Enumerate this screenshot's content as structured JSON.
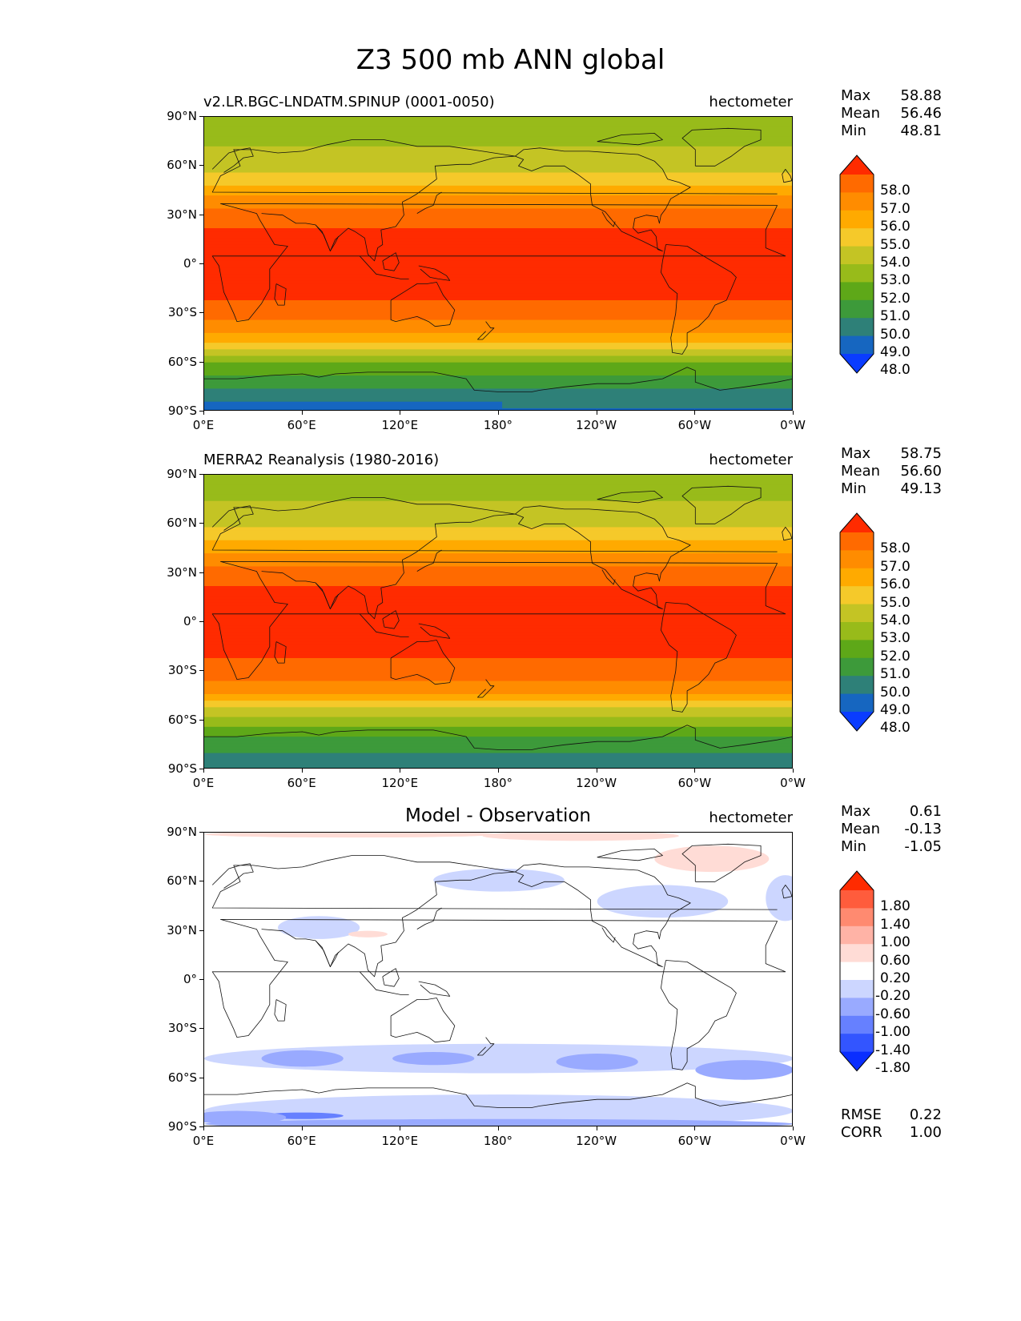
{
  "figure": {
    "title": "Z3 500 mb ANN global"
  },
  "axes": {
    "y_ticks": [
      "90°N",
      "60°N",
      "30°N",
      "0°",
      "30°S",
      "60°S",
      "90°S"
    ],
    "x_ticks": [
      "0°E",
      "60°E",
      "120°E",
      "180°",
      "120°W",
      "60°W",
      "0°W"
    ]
  },
  "panels": [
    {
      "title": "v2.LR.BGC-LNDATM.SPINUP (0001-0050)",
      "units": "hectometer",
      "stats": {
        "max_label": "Max",
        "max": "58.88",
        "mean_label": "Mean",
        "mean": "56.46",
        "min_label": "Min",
        "min": "48.81"
      },
      "colorbar": {
        "labels": [
          "58.0",
          "57.0",
          "56.0",
          "55.0",
          "54.0",
          "53.0",
          "52.0",
          "51.0",
          "50.0",
          "49.0",
          "48.0"
        ],
        "colors": [
          "#ff2b00",
          "#ff6a00",
          "#ff8c00",
          "#ffaa00",
          "#f5c92a",
          "#c4c424",
          "#98bb1a",
          "#5ea818",
          "#3d9a3a",
          "#2e8078",
          "#1666c0",
          "#0a3cff"
        ]
      }
    },
    {
      "title": "MERRA2 Reanalysis (1980-2016)",
      "units": "hectometer",
      "stats": {
        "max_label": "Max",
        "max": "58.75",
        "mean_label": "Mean",
        "mean": "56.60",
        "min_label": "Min",
        "min": "49.13"
      },
      "colorbar": {
        "labels": [
          "58.0",
          "57.0",
          "56.0",
          "55.0",
          "54.0",
          "53.0",
          "52.0",
          "51.0",
          "50.0",
          "49.0",
          "48.0"
        ],
        "colors": [
          "#ff2b00",
          "#ff6a00",
          "#ff8c00",
          "#ffaa00",
          "#f5c92a",
          "#c4c424",
          "#98bb1a",
          "#5ea818",
          "#3d9a3a",
          "#2e8078",
          "#1666c0",
          "#0a3cff"
        ]
      }
    },
    {
      "title": "Model - Observation",
      "units": "hectometer",
      "stats": {
        "max_label": "Max",
        "max": "0.61",
        "mean_label": "Mean",
        "mean": "-0.13",
        "min_label": "Min",
        "min": "-1.05"
      },
      "colorbar": {
        "labels": [
          "1.80",
          "1.40",
          "1.00",
          "0.60",
          "0.20",
          "-0.20",
          "-0.60",
          "-1.00",
          "-1.40",
          "-1.80"
        ],
        "colors": [
          "#ff2b00",
          "#ff5c3c",
          "#ff8a70",
          "#ffb3a6",
          "#ffdcd6",
          "#ffffff",
          "#ccd6ff",
          "#99aaff",
          "#6680ff",
          "#3355ff",
          "#0a2eff"
        ]
      },
      "metrics": {
        "rmse_label": "RMSE",
        "rmse": "0.22",
        "corr_label": "CORR",
        "corr": "1.00"
      }
    }
  ],
  "chart_data": [
    {
      "type": "heatmap",
      "title": "v2.LR.BGC-LNDATM.SPINUP (0001-0050)",
      "units": "hectometer",
      "xlim": [
        0,
        360
      ],
      "ylim": [
        -90,
        90
      ],
      "levels": [
        48,
        49,
        50,
        51,
        52,
        53,
        54,
        55,
        56,
        57,
        58
      ],
      "zonal_profile": {
        "lat": [
          90,
          75,
          60,
          45,
          30,
          15,
          0,
          -15,
          -30,
          -45,
          -60,
          -75,
          -90
        ],
        "value": [
          52.4,
          52.8,
          53.6,
          55.5,
          57.5,
          58.4,
          58.6,
          58.4,
          57.5,
          55.5,
          52.0,
          50.0,
          48.8
        ]
      },
      "stats": {
        "max": 58.88,
        "mean": 56.46,
        "min": 48.81
      }
    },
    {
      "type": "heatmap",
      "title": "MERRA2 Reanalysis (1980-2016)",
      "units": "hectometer",
      "xlim": [
        0,
        360
      ],
      "ylim": [
        -90,
        90
      ],
      "levels": [
        48,
        49,
        50,
        51,
        52,
        53,
        54,
        55,
        56,
        57,
        58
      ],
      "zonal_profile": {
        "lat": [
          90,
          75,
          60,
          45,
          30,
          15,
          0,
          -15,
          -30,
          -45,
          -60,
          -75,
          -90
        ],
        "value": [
          52.4,
          52.9,
          53.8,
          55.6,
          57.6,
          58.4,
          58.6,
          58.4,
          57.6,
          55.8,
          52.4,
          50.4,
          49.2
        ]
      },
      "stats": {
        "max": 58.75,
        "mean": 56.6,
        "min": 49.13
      }
    },
    {
      "type": "heatmap",
      "title": "Model - Observation",
      "units": "hectometer",
      "xlim": [
        0,
        360
      ],
      "ylim": [
        -90,
        90
      ],
      "levels": [
        -1.8,
        -1.4,
        -1.0,
        -0.6,
        -0.2,
        0.2,
        0.6,
        1.0,
        1.4,
        1.8
      ],
      "stats": {
        "max": 0.61,
        "mean": -0.13,
        "min": -1.05
      },
      "rmse": 0.22,
      "corr": 1.0
    }
  ]
}
